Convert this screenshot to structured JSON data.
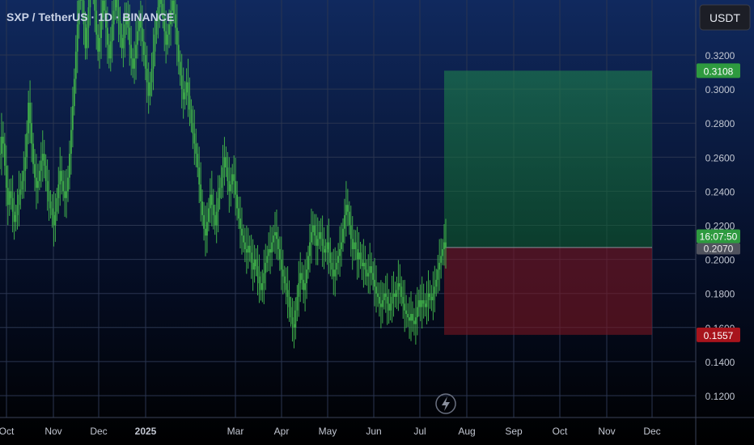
{
  "header": {
    "title": "SXP / TetherUS · 1D · BINANCE"
  },
  "currency_button": {
    "label": "USDT"
  },
  "colors": {
    "candle": "#3fae49",
    "profit_zone": "#1f8a4c",
    "loss_zone": "#7a1522",
    "last_price_tag": "#2e9a3f",
    "target_tag": "#2e9a3f",
    "stop_tag": "#a8141c"
  },
  "price_tags": {
    "target": "0.3108",
    "last_price": "0.2070",
    "countdown": "16:07:50",
    "stop": "0.1557"
  },
  "chart_data": {
    "type": "candlestick",
    "symbol": "SXP / TetherUS",
    "interval": "1D",
    "exchange": "BINANCE",
    "y_ticks": [
      "0.1200",
      "0.1400",
      "0.1600",
      "0.1800",
      "0.2000",
      "0.2200",
      "0.2400",
      "0.2600",
      "0.2800",
      "0.3000",
      "0.3200"
    ],
    "x_ticks": [
      "Oct",
      "Nov",
      "Dec",
      "2025",
      "Mar",
      "Apr",
      "May",
      "Jun",
      "Jul",
      "Aug",
      "Sep",
      "Oct",
      "Nov",
      "Dec"
    ],
    "ylim": [
      0.11,
      0.345
    ],
    "grid": true,
    "position_tool": {
      "entry": 0.207,
      "target": 0.3108,
      "stop": 0.1557
    },
    "series_close": [
      0.262,
      0.272,
      0.268,
      0.255,
      0.242,
      0.232,
      0.24,
      0.236,
      0.228,
      0.222,
      0.226,
      0.232,
      0.238,
      0.241,
      0.246,
      0.252,
      0.26,
      0.274,
      0.292,
      0.28,
      0.268,
      0.256,
      0.248,
      0.242,
      0.246,
      0.252,
      0.258,
      0.262,
      0.255,
      0.246,
      0.24,
      0.234,
      0.23,
      0.226,
      0.22,
      0.228,
      0.236,
      0.244,
      0.252,
      0.246,
      0.24,
      0.236,
      0.24,
      0.248,
      0.262,
      0.276,
      0.29,
      0.306,
      0.322,
      0.338,
      0.352,
      0.362,
      0.352,
      0.338,
      0.324,
      0.336,
      0.348,
      0.358,
      0.366,
      0.358,
      0.346,
      0.332,
      0.322,
      0.33,
      0.342,
      0.352,
      0.346,
      0.336,
      0.326,
      0.318,
      0.328,
      0.338,
      0.346,
      0.354,
      0.348,
      0.34,
      0.332,
      0.324,
      0.33,
      0.338,
      0.344,
      0.336,
      0.326,
      0.318,
      0.312,
      0.318,
      0.326,
      0.334,
      0.34,
      0.336,
      0.328,
      0.32,
      0.312,
      0.304,
      0.296,
      0.304,
      0.312,
      0.322,
      0.332,
      0.34,
      0.348,
      0.356,
      0.35,
      0.342,
      0.334,
      0.326,
      0.332,
      0.338,
      0.346,
      0.352,
      0.344,
      0.336,
      0.326,
      0.316,
      0.308,
      0.3,
      0.294,
      0.298,
      0.304,
      0.296,
      0.288,
      0.28,
      0.274,
      0.268,
      0.262,
      0.254,
      0.244,
      0.234,
      0.226,
      0.218,
      0.214,
      0.222,
      0.23,
      0.238,
      0.232,
      0.226,
      0.22,
      0.228,
      0.236,
      0.242,
      0.248,
      0.254,
      0.26,
      0.254,
      0.246,
      0.24,
      0.244,
      0.25,
      0.246,
      0.238,
      0.23,
      0.224,
      0.218,
      0.214,
      0.21,
      0.206,
      0.204,
      0.208,
      0.204,
      0.198,
      0.194,
      0.2,
      0.196,
      0.19,
      0.186,
      0.182,
      0.186,
      0.192,
      0.198,
      0.202,
      0.206,
      0.204,
      0.21,
      0.214,
      0.216,
      0.212,
      0.206,
      0.2,
      0.194,
      0.19,
      0.186,
      0.182,
      0.178,
      0.172,
      0.166,
      0.162,
      0.16,
      0.17,
      0.178,
      0.186,
      0.192,
      0.188,
      0.182,
      0.186,
      0.194,
      0.202,
      0.21,
      0.216,
      0.22,
      0.214,
      0.208,
      0.212,
      0.216,
      0.212,
      0.208,
      0.204,
      0.206,
      0.21,
      0.204,
      0.198,
      0.194,
      0.19,
      0.194,
      0.198,
      0.202,
      0.206,
      0.21,
      0.218,
      0.226,
      0.232,
      0.228,
      0.22,
      0.212,
      0.206,
      0.21,
      0.206,
      0.2,
      0.204,
      0.2,
      0.196,
      0.198,
      0.194,
      0.19,
      0.192,
      0.196,
      0.192,
      0.188,
      0.184,
      0.18,
      0.178,
      0.174,
      0.172,
      0.176,
      0.18,
      0.178,
      0.174,
      0.17,
      0.174,
      0.178,
      0.18,
      0.178,
      0.182,
      0.186,
      0.184,
      0.178,
      0.174,
      0.17,
      0.168,
      0.166,
      0.164,
      0.168,
      0.164,
      0.162,
      0.166,
      0.172,
      0.176,
      0.172,
      0.176,
      0.174,
      0.172,
      0.176,
      0.18,
      0.178,
      0.176,
      0.18,
      0.184,
      0.188,
      0.194,
      0.198,
      0.202,
      0.206,
      0.21,
      0.207
    ]
  },
  "footer": {
    "icon": "lightning-icon"
  }
}
